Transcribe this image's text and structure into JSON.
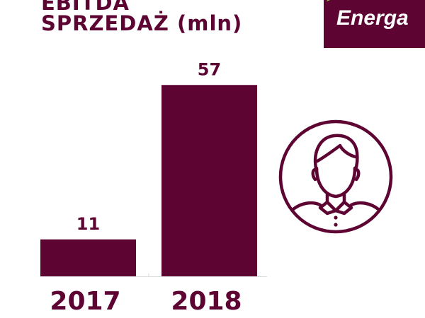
{
  "title": {
    "line1": "EBITDA",
    "line2_main": "SPRZEDAŻ",
    "line2_unit": "(mln)"
  },
  "logo": {
    "text": "Energa",
    "leaf_color": "#8cc63e"
  },
  "colors": {
    "brand": "#5e0433",
    "baseline": "#dddddd"
  },
  "icons": {
    "profile": "user-avatar-icon"
  },
  "chart_data": {
    "type": "bar",
    "categories": [
      "2017",
      "2018"
    ],
    "values": [
      11,
      57
    ],
    "data_labels": [
      "11",
      "57"
    ],
    "title": "EBITDA SPRZEDAŻ (mln)",
    "xlabel": "",
    "ylabel": "",
    "ylim": [
      0,
      60
    ],
    "grid": false,
    "legend": "none"
  }
}
